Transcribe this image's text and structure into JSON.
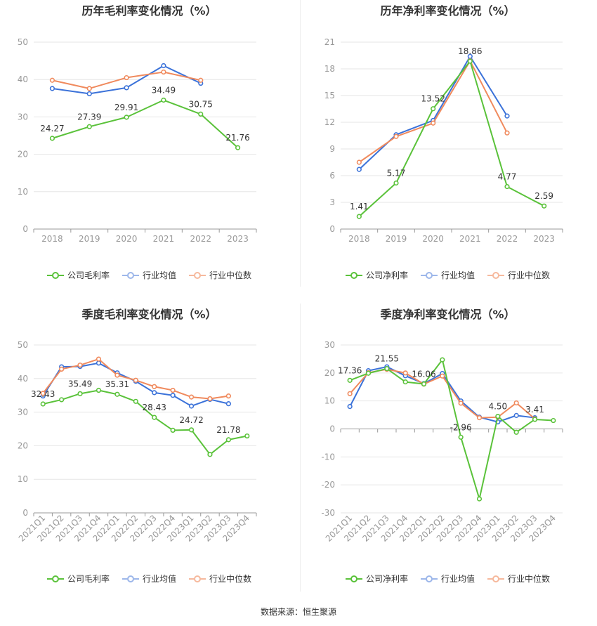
{
  "colors": {
    "company": "#5ac23a",
    "avg": "#3b72d9",
    "median": "#f08a5d",
    "grid": "#e6e6e6",
    "axis": "#999999"
  },
  "source": "数据来源：恒生聚源",
  "chart_data": [
    {
      "type": "line",
      "title": "历年毛利率变化情况（%）",
      "categories": [
        "2018",
        "2019",
        "2020",
        "2021",
        "2022",
        "2023"
      ],
      "ylim": [
        0,
        50
      ],
      "yticks": [
        0,
        10,
        20,
        30,
        40,
        50
      ],
      "series": [
        {
          "name": "公司毛利率",
          "key": "company",
          "values": [
            24.27,
            27.39,
            29.91,
            34.49,
            30.75,
            21.76
          ],
          "labels": [
            "24.27",
            "27.39",
            "29.91",
            "34.49",
            "30.75",
            "21.76"
          ]
        },
        {
          "name": "行业均值",
          "key": "avg",
          "values": [
            37.6,
            36.2,
            37.8,
            43.7,
            39.0,
            null
          ]
        },
        {
          "name": "行业中位数",
          "key": "median",
          "values": [
            39.8,
            37.6,
            40.5,
            42.0,
            39.8,
            null
          ]
        }
      ]
    },
    {
      "type": "line",
      "title": "历年净利率变化情况（%）",
      "categories": [
        "2018",
        "2019",
        "2020",
        "2021",
        "2022",
        "2023"
      ],
      "ylim": [
        0,
        21
      ],
      "yticks": [
        0,
        3,
        6,
        9,
        12,
        15,
        18,
        21
      ],
      "series": [
        {
          "name": "公司净利率",
          "key": "company",
          "values": [
            1.41,
            5.17,
            13.52,
            18.86,
            4.77,
            2.59
          ],
          "labels": [
            "1.41",
            "5.17",
            "13.52",
            "18.86",
            "4.77",
            "2.59"
          ]
        },
        {
          "name": "行业均值",
          "key": "avg",
          "values": [
            6.7,
            10.6,
            12.2,
            19.4,
            12.7,
            null
          ]
        },
        {
          "name": "行业中位数",
          "key": "median",
          "values": [
            7.5,
            10.4,
            11.9,
            18.9,
            10.8,
            null
          ]
        }
      ]
    },
    {
      "type": "line",
      "title": "季度毛利率变化情况（%）",
      "categories": [
        "2021Q1",
        "2021Q2",
        "2021Q3",
        "2021Q4",
        "2022Q1",
        "2022Q2",
        "2022Q3",
        "2022Q4",
        "2023Q1",
        "2023Q2",
        "2023Q3",
        "2023Q4"
      ],
      "ylim": [
        0,
        50
      ],
      "yticks": [
        0,
        10,
        20,
        30,
        40,
        50
      ],
      "series": [
        {
          "name": "公司毛利率",
          "key": "company",
          "values": [
            32.43,
            33.7,
            35.49,
            36.5,
            35.31,
            33.2,
            28.43,
            24.6,
            24.72,
            17.4,
            21.78,
            22.9
          ],
          "labels": [
            "32.43",
            "",
            "35.49",
            "",
            "35.31",
            "",
            "28.43",
            "",
            "24.72",
            "",
            "21.78",
            ""
          ]
        },
        {
          "name": "行业均值",
          "key": "avg",
          "values": [
            34.8,
            43.5,
            43.6,
            44.6,
            41.7,
            39.2,
            35.8,
            35.0,
            31.8,
            33.8,
            32.5,
            null
          ]
        },
        {
          "name": "行业中位数",
          "key": "median",
          "values": [
            35.6,
            42.8,
            44.0,
            45.8,
            41.0,
            39.5,
            37.6,
            36.5,
            34.5,
            34.0,
            34.8,
            null
          ]
        }
      ]
    },
    {
      "type": "line",
      "title": "季度净利率变化情况（%）",
      "categories": [
        "2021Q1",
        "2021Q2",
        "2021Q3",
        "2021Q4",
        "2022Q1",
        "2022Q2",
        "2022Q3",
        "2022Q4",
        "2023Q1",
        "2023Q2",
        "2023Q3",
        "2023Q4"
      ],
      "ylim": [
        -30,
        30
      ],
      "yticks": [
        -30,
        -20,
        -10,
        0,
        10,
        20,
        30
      ],
      "series": [
        {
          "name": "公司净利率",
          "key": "company",
          "values": [
            17.36,
            19.9,
            21.55,
            16.8,
            16.06,
            24.7,
            -2.96,
            -25.0,
            4.5,
            -1.2,
            3.41,
            3.0
          ],
          "labels": [
            "17.36",
            "",
            "21.55",
            "",
            "16.06",
            "",
            "-2.96",
            "",
            "4.50",
            "",
            "3.41",
            ""
          ]
        },
        {
          "name": "行业均值",
          "key": "avg",
          "values": [
            8.0,
            20.8,
            22.2,
            19.0,
            16.2,
            19.8,
            10.0,
            4.2,
            2.5,
            4.8,
            4.0,
            null
          ]
        },
        {
          "name": "行业中位数",
          "key": "median",
          "values": [
            12.6,
            20.1,
            21.3,
            20.0,
            16.0,
            18.9,
            9.2,
            4.0,
            4.2,
            9.3,
            3.6,
            null
          ]
        }
      ]
    }
  ]
}
